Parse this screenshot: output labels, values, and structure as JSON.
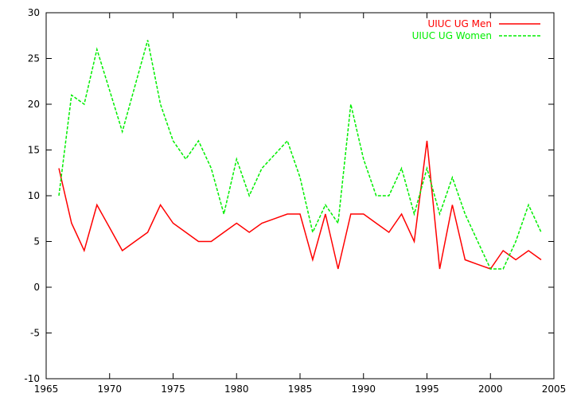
{
  "chart_data": {
    "type": "line",
    "title": "",
    "xlabel": "",
    "ylabel": "",
    "xlim": [
      1965,
      2005
    ],
    "ylim": [
      -10,
      30
    ],
    "xticks": [
      1965,
      1970,
      1975,
      1980,
      1985,
      1990,
      1995,
      2000,
      2005
    ],
    "yticks": [
      -10,
      -5,
      0,
      5,
      10,
      15,
      20,
      25,
      30
    ],
    "grid": false,
    "legend_position": "top-right",
    "series": [
      {
        "name": "UIUC UG Men",
        "color": "#ff0000",
        "dash": "solid",
        "x": [
          1966,
          1967,
          1968,
          1969,
          1970,
          1971,
          1972,
          1973,
          1974,
          1975,
          1976,
          1977,
          1978,
          1979,
          1980,
          1981,
          1982,
          1983,
          1984,
          1985,
          1986,
          1987,
          1988,
          1989,
          1990,
          1991,
          1992,
          1993,
          1994,
          1995,
          1996,
          1997,
          1998,
          1999,
          2000,
          2001,
          2002,
          2003,
          2004
        ],
        "values": [
          13,
          7,
          4,
          9,
          6.5,
          4,
          5,
          6,
          9,
          7,
          6,
          5,
          5,
          6,
          7,
          6,
          7,
          7.5,
          8,
          8,
          3,
          8,
          2,
          8,
          8,
          7,
          6,
          8,
          5,
          16,
          2,
          9,
          3,
          2.5,
          2,
          4,
          3,
          4,
          3
        ]
      },
      {
        "name": "UIUC UG Women",
        "color": "#00ee00",
        "dash": "dashed",
        "x": [
          1966,
          1967,
          1968,
          1969,
          1970,
          1971,
          1972,
          1973,
          1974,
          1975,
          1976,
          1977,
          1978,
          1979,
          1980,
          1981,
          1982,
          1983,
          1984,
          1985,
          1986,
          1987,
          1988,
          1989,
          1990,
          1991,
          1992,
          1993,
          1994,
          1995,
          1996,
          1997,
          1998,
          1999,
          2000,
          2001,
          2002,
          2003,
          2004
        ],
        "values": [
          10,
          21,
          20,
          26,
          21.5,
          17,
          22,
          27,
          20,
          16,
          14,
          16,
          13,
          8,
          14,
          10,
          13,
          14.5,
          16,
          12,
          6,
          9,
          7,
          20,
          14,
          10,
          10,
          13,
          8,
          13,
          8,
          12,
          8,
          5,
          2,
          2,
          5,
          9,
          6
        ]
      }
    ]
  }
}
